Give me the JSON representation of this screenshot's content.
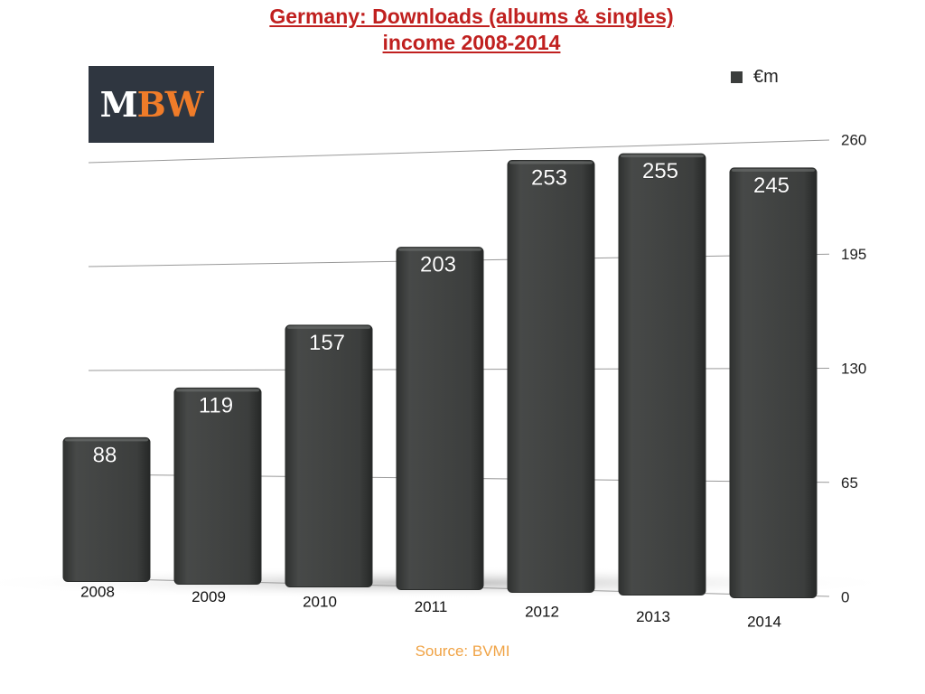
{
  "logo": {
    "text_m": "M",
    "text_bw": "BW"
  },
  "legend": {
    "label": "€m",
    "color": "#3b3d3c"
  },
  "source": "Source: BVMI",
  "colors": {
    "title": "#c0201f",
    "bar": "#3b3d3c",
    "source": "#f0a345",
    "grid": "#999999"
  },
  "chart_data": {
    "type": "bar",
    "title": "Germany: Downloads (albums & singles)",
    "title_line2": "income 2008-2014",
    "categories": [
      "2008",
      "2009",
      "2010",
      "2011",
      "2012",
      "2013",
      "2014"
    ],
    "series": [
      {
        "name": "€m",
        "values": [
          88,
          119,
          157,
          203,
          253,
          255,
          245
        ]
      }
    ],
    "data_labels": [
      "88",
      "119",
      "157",
      "203",
      "253",
      "255",
      "245"
    ],
    "ylim": [
      0,
      260
    ],
    "yticks": [
      0,
      65,
      130,
      195,
      260
    ],
    "ytick_labels": [
      "0",
      "65",
      "130",
      "195",
      "260"
    ],
    "y_axis_position": "right",
    "grid": true,
    "legend_position": "top-right",
    "xlabel": "",
    "ylabel": ""
  }
}
